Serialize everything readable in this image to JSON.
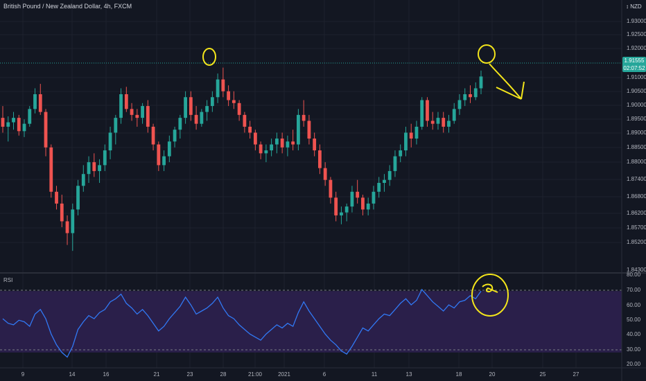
{
  "header": {
    "title": "British Pound / New Zealand Dollar, 4h, FXCM"
  },
  "currency": "↕ NZD",
  "last_price": {
    "value": "1.91555",
    "countdown": "02:07:52"
  },
  "rsi": {
    "label": "RSI",
    "upper": 70,
    "lower": 30
  },
  "colors": {
    "up": "#26a69a",
    "down": "#ef5350",
    "rsi_line": "#3179f5",
    "rsi_band": "#2a1f4a",
    "annotation": "#f4e61b"
  },
  "chart_data": [
    {
      "type": "candlestick",
      "title": "British Pound / New Zealand Dollar, 4h, FXCM",
      "y_ticks": [
        "1.93000",
        "1.92500",
        "1.92000",
        "1.91000",
        "1.90500",
        "1.90000",
        "1.89500",
        "1.89000",
        "1.88500",
        "1.88000",
        "1.87400",
        "1.86800",
        "1.86200",
        "1.85700",
        "1.85200",
        "1.84300"
      ],
      "ylim": [
        1.847,
        1.937
      ],
      "x_ticks": [
        "9",
        "14",
        "16",
        "21",
        "23",
        "28",
        "21:00",
        "2021",
        "6",
        "11",
        "13",
        "18",
        "20",
        "25",
        "27"
      ],
      "ohlc": [
        [
          1.899,
          1.903,
          1.894,
          1.896
        ],
        [
          1.896,
          1.8995,
          1.891,
          1.8975
        ],
        [
          1.8975,
          1.901,
          1.895,
          1.899
        ],
        [
          1.899,
          1.9,
          1.893,
          1.8945
        ],
        [
          1.8945,
          1.8985,
          1.8925,
          1.897
        ],
        [
          1.897,
          1.903,
          1.896,
          1.902
        ],
        [
          1.902,
          1.909,
          1.9005,
          1.907
        ],
        [
          1.907,
          1.9105,
          1.9,
          1.901
        ],
        [
          1.901,
          1.902,
          1.886,
          1.889
        ],
        [
          1.889,
          1.89,
          1.872,
          1.874
        ],
        [
          1.874,
          1.876,
          1.868,
          1.87
        ],
        [
          1.87,
          1.873,
          1.862,
          1.864
        ],
        [
          1.864,
          1.866,
          1.856,
          1.86
        ],
        [
          1.86,
          1.87,
          1.854,
          1.868
        ],
        [
          1.868,
          1.878,
          1.866,
          1.876
        ],
        [
          1.876,
          1.883,
          1.874,
          1.88
        ],
        [
          1.88,
          1.886,
          1.877,
          1.884
        ],
        [
          1.884,
          1.887,
          1.879,
          1.881
        ],
        [
          1.881,
          1.885,
          1.877,
          1.883
        ],
        [
          1.883,
          1.89,
          1.881,
          1.888
        ],
        [
          1.888,
          1.896,
          1.885,
          1.894
        ],
        [
          1.894,
          1.9,
          1.89,
          1.899
        ],
        [
          1.899,
          1.909,
          1.897,
          1.907
        ],
        [
          1.907,
          1.9095,
          1.901,
          1.902
        ],
        [
          1.902,
          1.904,
          1.898,
          1.9
        ],
        [
          1.9,
          1.902,
          1.896,
          1.899
        ],
        [
          1.899,
          1.904,
          1.897,
          1.903
        ],
        [
          1.903,
          1.905,
          1.894,
          1.896
        ],
        [
          1.896,
          1.897,
          1.888,
          1.89
        ],
        [
          1.89,
          1.891,
          1.881,
          1.883
        ],
        [
          1.883,
          1.888,
          1.881,
          1.886
        ],
        [
          1.886,
          1.893,
          1.884,
          1.891
        ],
        [
          1.891,
          1.896,
          1.889,
          1.895
        ],
        [
          1.895,
          1.9,
          1.892,
          1.899
        ],
        [
          1.899,
          1.908,
          1.897,
          1.906
        ],
        [
          1.906,
          1.908,
          1.898,
          1.9
        ],
        [
          1.9,
          1.903,
          1.895,
          1.897
        ],
        [
          1.897,
          1.902,
          1.896,
          1.901
        ],
        [
          1.901,
          1.905,
          1.898,
          1.903
        ],
        [
          1.903,
          1.908,
          1.901,
          1.906
        ],
        [
          1.906,
          1.914,
          1.904,
          1.912
        ],
        [
          1.912,
          1.916,
          1.906,
          1.908
        ],
        [
          1.908,
          1.91,
          1.903,
          1.905
        ],
        [
          1.905,
          1.908,
          1.902,
          1.904
        ],
        [
          1.904,
          1.905,
          1.898,
          1.9
        ],
        [
          1.9,
          1.901,
          1.894,
          1.896
        ],
        [
          1.896,
          1.898,
          1.892,
          1.894
        ],
        [
          1.894,
          1.895,
          1.888,
          1.89
        ],
        [
          1.89,
          1.891,
          1.885,
          1.887
        ],
        [
          1.887,
          1.89,
          1.884,
          1.888
        ],
        [
          1.888,
          1.892,
          1.886,
          1.89
        ],
        [
          1.89,
          1.894,
          1.887,
          1.892
        ],
        [
          1.892,
          1.894,
          1.887,
          1.889
        ],
        [
          1.889,
          1.893,
          1.886,
          1.891
        ],
        [
          1.891,
          1.895,
          1.888,
          1.89
        ],
        [
          1.89,
          1.902,
          1.888,
          1.9
        ],
        [
          1.9,
          1.905,
          1.896,
          1.898
        ],
        [
          1.898,
          1.9,
          1.89,
          1.892
        ],
        [
          1.892,
          1.894,
          1.886,
          1.888
        ],
        [
          1.888,
          1.89,
          1.88,
          1.882
        ],
        [
          1.882,
          1.884,
          1.876,
          1.878
        ],
        [
          1.878,
          1.879,
          1.87,
          1.872
        ],
        [
          1.872,
          1.874,
          1.864,
          1.866
        ],
        [
          1.866,
          1.869,
          1.863,
          1.867
        ],
        [
          1.867,
          1.87,
          1.864,
          1.869
        ],
        [
          1.869,
          1.876,
          1.867,
          1.874
        ],
        [
          1.874,
          1.878,
          1.87,
          1.872
        ],
        [
          1.872,
          1.873,
          1.866,
          1.868
        ],
        [
          1.868,
          1.872,
          1.866,
          1.87
        ],
        [
          1.87,
          1.876,
          1.868,
          1.874
        ],
        [
          1.874,
          1.879,
          1.872,
          1.877
        ],
        [
          1.877,
          1.88,
          1.874,
          1.878
        ],
        [
          1.878,
          1.883,
          1.876,
          1.881
        ],
        [
          1.881,
          1.888,
          1.879,
          1.886
        ],
        [
          1.886,
          1.89,
          1.884,
          1.888
        ],
        [
          1.888,
          1.896,
          1.886,
          1.894
        ],
        [
          1.894,
          1.897,
          1.889,
          1.892
        ],
        [
          1.892,
          1.898,
          1.89,
          1.896
        ],
        [
          1.896,
          1.906,
          1.895,
          1.905
        ],
        [
          1.905,
          1.906,
          1.896,
          1.898
        ],
        [
          1.898,
          1.901,
          1.895,
          1.897
        ],
        [
          1.897,
          1.901,
          1.895,
          1.899
        ],
        [
          1.899,
          1.901,
          1.894,
          1.896
        ],
        [
          1.896,
          1.9,
          1.894,
          1.898
        ],
        [
          1.898,
          1.904,
          1.897,
          1.902
        ],
        [
          1.902,
          1.907,
          1.9,
          1.905
        ],
        [
          1.905,
          1.909,
          1.903,
          1.907
        ],
        [
          1.907,
          1.91,
          1.904,
          1.906
        ],
        [
          1.906,
          1.911,
          1.905,
          1.909
        ],
        [
          1.909,
          1.915,
          1.907,
          1.913
        ]
      ]
    },
    {
      "type": "line",
      "series": [
        {
          "name": "RSI",
          "values": [
            52,
            49,
            48,
            51,
            50,
            47,
            55,
            58,
            52,
            42,
            35,
            30,
            27,
            34,
            45,
            50,
            54,
            52,
            56,
            58,
            63,
            65,
            68,
            62,
            59,
            55,
            58,
            54,
            49,
            44,
            47,
            52,
            56,
            60,
            66,
            61,
            55,
            57,
            59,
            62,
            66,
            59,
            54,
            52,
            48,
            45,
            42,
            40,
            38,
            42,
            45,
            48,
            46,
            49,
            47,
            56,
            63,
            57,
            52,
            47,
            42,
            38,
            35,
            31,
            29,
            34,
            40,
            46,
            44,
            48,
            52,
            55,
            54,
            58,
            62,
            65,
            61,
            64,
            71,
            67,
            63,
            60,
            57,
            61,
            59,
            63,
            64,
            67,
            65,
            70
          ]
        }
      ],
      "y_ticks": [
        "80.00",
        "70.00",
        "60.00",
        "50.00",
        "40.00",
        "30.00",
        "20.00"
      ],
      "ylim": [
        20,
        80
      ],
      "upper": 70,
      "lower": 30
    }
  ]
}
